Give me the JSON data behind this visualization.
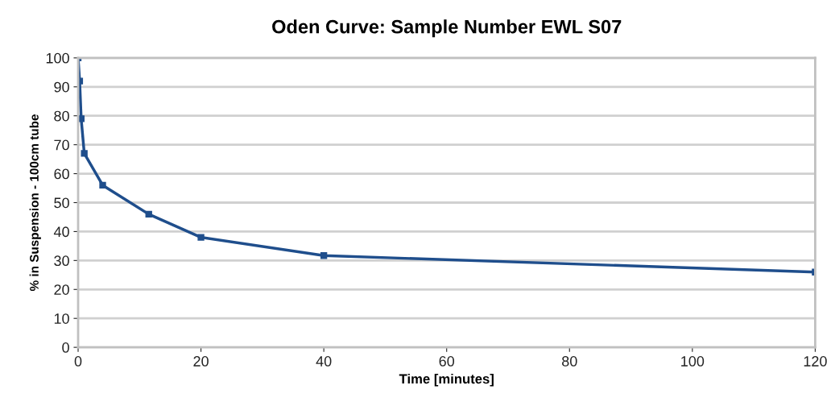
{
  "chart_data": {
    "type": "line",
    "title": "Oden Curve: Sample Number EWL S07",
    "xlabel": "Time [minutes]",
    "ylabel": "% in Suspension - 100cm tube",
    "x": [
      0,
      0.25,
      0.5,
      1,
      4,
      11.5,
      20,
      40,
      120
    ],
    "series": [
      {
        "color": "#1f4e8c",
        "values": [
          100,
          92,
          79,
          67,
          56,
          46,
          38,
          31.7,
          26
        ]
      }
    ],
    "xlim": [
      0,
      120
    ],
    "xticks": [
      0,
      20,
      40,
      60,
      80,
      100,
      120
    ],
    "ylim": [
      0,
      100
    ],
    "yticks": [
      0,
      10,
      20,
      30,
      40,
      50,
      60,
      70,
      80,
      90,
      100
    ],
    "grid": "y",
    "marker": "square",
    "line_style": "solid"
  }
}
